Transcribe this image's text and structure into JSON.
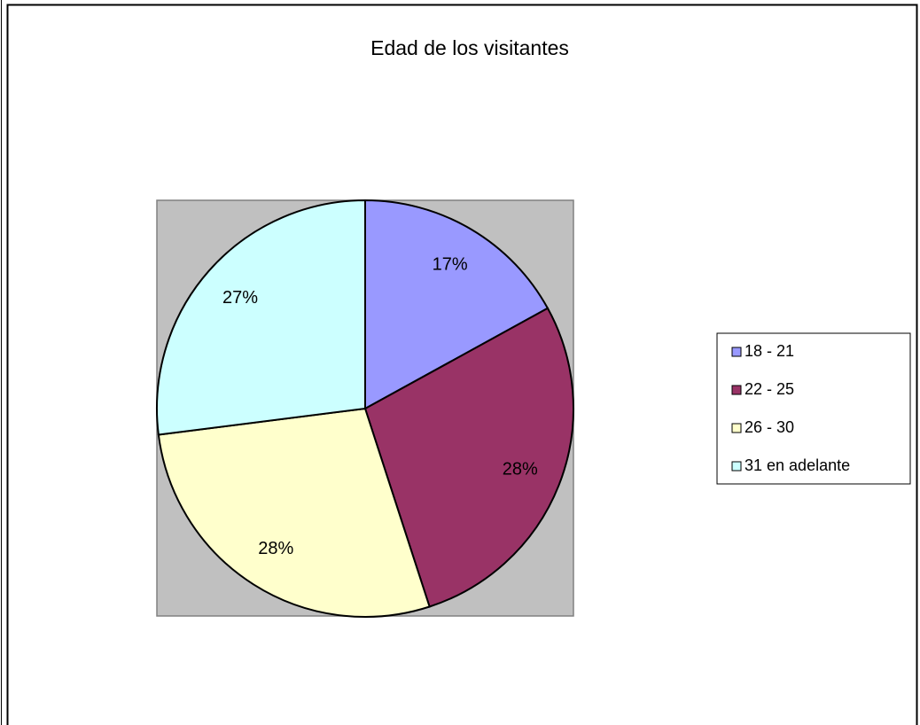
{
  "chart_data": {
    "type": "pie",
    "title": "Edad de los visitantes",
    "categories": [
      "18 - 21",
      "22 - 25",
      "26 - 30",
      "31 en adelante"
    ],
    "values": [
      17,
      28,
      28,
      27
    ],
    "value_labels": [
      "17%",
      "28%",
      "28%",
      "27%"
    ],
    "colors": [
      "#9999ff",
      "#993366",
      "#ffffcc",
      "#ccffff"
    ],
    "legend": "right"
  }
}
